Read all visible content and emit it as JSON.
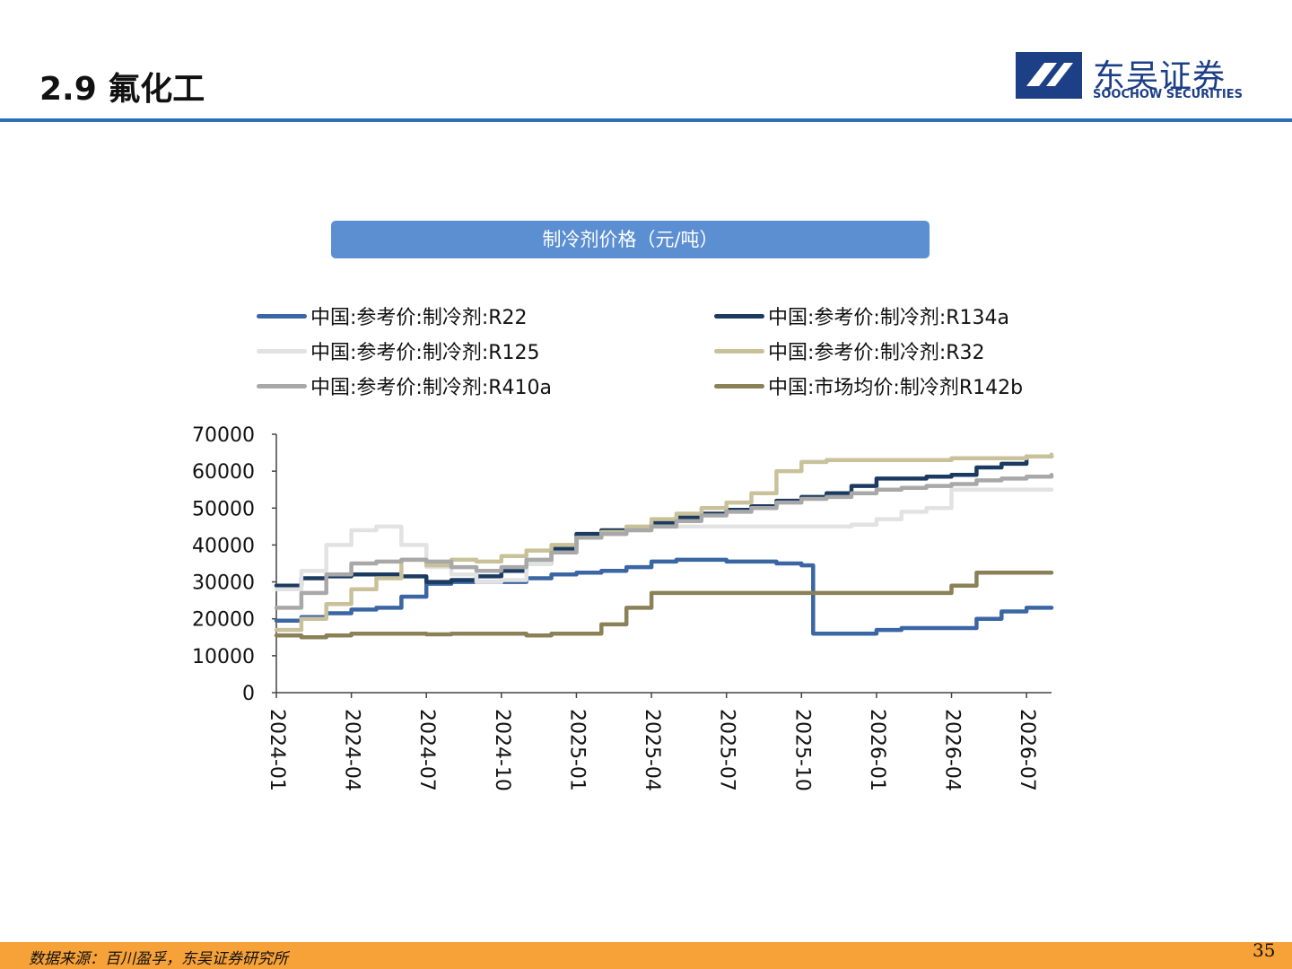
{
  "header": {
    "title": "2.9 氟化工",
    "logo_cn": "东吴证券",
    "logo_en": "SOOCHOW SECURITIES"
  },
  "chart_title": "制冷剂价格（元/吨）",
  "footer": {
    "source": "数据来源：百川盈孚，东吴证券研究所",
    "page": "35"
  },
  "colors": {
    "accent_blue": "#2e6db4",
    "title_bar": "#5b8fd2",
    "footer": "#f7a139",
    "brand": "#1c3f86"
  },
  "chart_data": {
    "type": "line",
    "x_ticks": [
      "2024-01",
      "2024-04",
      "2024-07",
      "2024-10",
      "2025-01",
      "2025-04",
      "2025-07",
      "2025-10",
      "2026-01",
      "2026-04",
      "2026-07"
    ],
    "x_range": [
      "2024-01",
      "2026-08"
    ],
    "ylim": [
      0,
      70000
    ],
    "y_ticks": [
      "0",
      "10000",
      "20000",
      "30000",
      "40000",
      "50000",
      "60000",
      "70000"
    ],
    "grid": false,
    "legend_position": "top",
    "series": [
      {
        "name": "中国:参考价:制冷剂:R22",
        "color": "#3a66a3",
        "points": [
          [
            "2024-01",
            19500
          ],
          [
            "2024-02",
            20500
          ],
          [
            "2024-03",
            21500
          ],
          [
            "2024-04",
            22500
          ],
          [
            "2024-05",
            23000
          ],
          [
            "2024-06",
            26000
          ],
          [
            "2024-07",
            29500
          ],
          [
            "2024-08",
            30000
          ],
          [
            "2024-09",
            30000
          ],
          [
            "2024-10",
            30000
          ],
          [
            "2024-11",
            31000
          ],
          [
            "2024-12",
            32000
          ],
          [
            "2025-01",
            32500
          ],
          [
            "2025-02",
            33000
          ],
          [
            "2025-03",
            34000
          ],
          [
            "2025-04",
            35500
          ],
          [
            "2025-05",
            36000
          ],
          [
            "2025-06",
            36000
          ],
          [
            "2025-07",
            35500
          ],
          [
            "2025-08",
            35500
          ],
          [
            "2025-09",
            35000
          ],
          [
            "2025-10",
            34500
          ],
          [
            "2025-10-15",
            16000
          ],
          [
            "2025-11",
            16000
          ],
          [
            "2025-12",
            16000
          ],
          [
            "2026-01",
            17000
          ],
          [
            "2026-02",
            17500
          ],
          [
            "2026-03",
            17500
          ],
          [
            "2026-04",
            17500
          ],
          [
            "2026-05",
            20000
          ],
          [
            "2026-06",
            22000
          ],
          [
            "2026-07",
            23000
          ],
          [
            "2026-08",
            23000
          ]
        ]
      },
      {
        "name": "中国:参考价:制冷剂:R134a",
        "color": "#1b3a60",
        "points": [
          [
            "2024-01",
            29000
          ],
          [
            "2024-02",
            31000
          ],
          [
            "2024-03",
            31500
          ],
          [
            "2024-04",
            32000
          ],
          [
            "2024-05",
            32000
          ],
          [
            "2024-06",
            31500
          ],
          [
            "2024-07",
            30000
          ],
          [
            "2024-08",
            30500
          ],
          [
            "2024-09",
            31500
          ],
          [
            "2024-10",
            33000
          ],
          [
            "2024-11",
            35000
          ],
          [
            "2024-12",
            39000
          ],
          [
            "2025-01",
            43000
          ],
          [
            "2025-02",
            44000
          ],
          [
            "2025-03",
            44500
          ],
          [
            "2025-04",
            46000
          ],
          [
            "2025-05",
            47500
          ],
          [
            "2025-06",
            48500
          ],
          [
            "2025-07",
            49500
          ],
          [
            "2025-08",
            50500
          ],
          [
            "2025-09",
            52000
          ],
          [
            "2025-10",
            53000
          ],
          [
            "2025-11",
            54000
          ],
          [
            "2025-12",
            56000
          ],
          [
            "2026-01",
            58000
          ],
          [
            "2026-02",
            58000
          ],
          [
            "2026-03",
            58500
          ],
          [
            "2026-04",
            59000
          ],
          [
            "2026-05",
            61000
          ],
          [
            "2026-06",
            62000
          ],
          [
            "2026-07",
            64000
          ],
          [
            "2026-08",
            64000
          ]
        ]
      },
      {
        "name": "中国:参考价:制冷剂:R125",
        "color": "#e2e2e2",
        "points": [
          [
            "2024-01",
            28000
          ],
          [
            "2024-02",
            33000
          ],
          [
            "2024-03",
            40000
          ],
          [
            "2024-04",
            44000
          ],
          [
            "2024-05",
            45000
          ],
          [
            "2024-06",
            40000
          ],
          [
            "2024-07",
            34000
          ],
          [
            "2024-08",
            32000
          ],
          [
            "2024-09",
            30000
          ],
          [
            "2024-10",
            30500
          ],
          [
            "2024-11",
            35000
          ],
          [
            "2024-12",
            38000
          ],
          [
            "2025-01",
            42000
          ],
          [
            "2025-02",
            43000
          ],
          [
            "2025-03",
            44000
          ],
          [
            "2025-04",
            45000
          ],
          [
            "2025-05",
            45000
          ],
          [
            "2025-06",
            45000
          ],
          [
            "2025-07",
            45000
          ],
          [
            "2025-08",
            45000
          ],
          [
            "2025-09",
            45000
          ],
          [
            "2025-10",
            45000
          ],
          [
            "2025-11",
            45000
          ],
          [
            "2025-12",
            45500
          ],
          [
            "2026-01",
            47000
          ],
          [
            "2026-02",
            49000
          ],
          [
            "2026-03",
            50000
          ],
          [
            "2026-04",
            55000
          ],
          [
            "2026-05",
            55000
          ],
          [
            "2026-06",
            55000
          ],
          [
            "2026-07",
            55000
          ],
          [
            "2026-08",
            55000
          ]
        ]
      },
      {
        "name": "中国:参考价:制冷剂:R32",
        "color": "#c9c19a",
        "points": [
          [
            "2024-01",
            17000
          ],
          [
            "2024-02",
            20000
          ],
          [
            "2024-03",
            24000
          ],
          [
            "2024-04",
            28000
          ],
          [
            "2024-05",
            31000
          ],
          [
            "2024-06",
            36000
          ],
          [
            "2024-07",
            34500
          ],
          [
            "2024-08",
            36000
          ],
          [
            "2024-09",
            35500
          ],
          [
            "2024-10",
            37000
          ],
          [
            "2024-11",
            38500
          ],
          [
            "2024-12",
            40000
          ],
          [
            "2025-01",
            42000
          ],
          [
            "2025-02",
            43500
          ],
          [
            "2025-03",
            45000
          ],
          [
            "2025-04",
            47000
          ],
          [
            "2025-05",
            48500
          ],
          [
            "2025-06",
            50000
          ],
          [
            "2025-07",
            51500
          ],
          [
            "2025-08",
            54000
          ],
          [
            "2025-09",
            60000
          ],
          [
            "2025-10",
            62500
          ],
          [
            "2025-11",
            63000
          ],
          [
            "2025-12",
            63000
          ],
          [
            "2026-01",
            63000
          ],
          [
            "2026-02",
            63000
          ],
          [
            "2026-03",
            63000
          ],
          [
            "2026-04",
            63500
          ],
          [
            "2026-05",
            63500
          ],
          [
            "2026-06",
            63500
          ],
          [
            "2026-07",
            64000
          ],
          [
            "2026-08",
            64500
          ]
        ]
      },
      {
        "name": "中国:参考价:制冷剂:R410a",
        "color": "#a8a8a8",
        "points": [
          [
            "2024-01",
            23000
          ],
          [
            "2024-02",
            27000
          ],
          [
            "2024-03",
            32000
          ],
          [
            "2024-04",
            35000
          ],
          [
            "2024-05",
            35500
          ],
          [
            "2024-06",
            36000
          ],
          [
            "2024-07",
            35500
          ],
          [
            "2024-08",
            34000
          ],
          [
            "2024-09",
            33000
          ],
          [
            "2024-10",
            34000
          ],
          [
            "2024-11",
            36000
          ],
          [
            "2024-12",
            38000
          ],
          [
            "2025-01",
            42000
          ],
          [
            "2025-02",
            43000
          ],
          [
            "2025-03",
            44000
          ],
          [
            "2025-04",
            45000
          ],
          [
            "2025-05",
            46500
          ],
          [
            "2025-06",
            48000
          ],
          [
            "2025-07",
            49000
          ],
          [
            "2025-08",
            50000
          ],
          [
            "2025-09",
            51500
          ],
          [
            "2025-10",
            52500
          ],
          [
            "2025-11",
            53000
          ],
          [
            "2025-12",
            54000
          ],
          [
            "2026-01",
            55000
          ],
          [
            "2026-02",
            55500
          ],
          [
            "2026-03",
            56000
          ],
          [
            "2026-04",
            56500
          ],
          [
            "2026-05",
            57500
          ],
          [
            "2026-06",
            58000
          ],
          [
            "2026-07",
            58500
          ],
          [
            "2026-08",
            59000
          ]
        ]
      },
      {
        "name": "中国:市场均价:制冷剂R142b",
        "color": "#8a8157",
        "points": [
          [
            "2024-01",
            15500
          ],
          [
            "2024-02",
            15000
          ],
          [
            "2024-03",
            15500
          ],
          [
            "2024-04",
            16000
          ],
          [
            "2024-05",
            16000
          ],
          [
            "2024-06",
            16000
          ],
          [
            "2024-07",
            15800
          ],
          [
            "2024-08",
            16000
          ],
          [
            "2024-09",
            16000
          ],
          [
            "2024-10",
            16000
          ],
          [
            "2024-11",
            15500
          ],
          [
            "2024-12",
            16000
          ],
          [
            "2025-01",
            16000
          ],
          [
            "2025-02",
            18500
          ],
          [
            "2025-03",
            23000
          ],
          [
            "2025-04",
            27000
          ],
          [
            "2025-05",
            27000
          ],
          [
            "2025-06",
            27000
          ],
          [
            "2025-07",
            27000
          ],
          [
            "2025-08",
            27000
          ],
          [
            "2025-09",
            27000
          ],
          [
            "2025-10",
            27000
          ],
          [
            "2025-11",
            27000
          ],
          [
            "2025-12",
            27000
          ],
          [
            "2026-01",
            27000
          ],
          [
            "2026-02",
            27000
          ],
          [
            "2026-03",
            27000
          ],
          [
            "2026-04",
            29000
          ],
          [
            "2026-05",
            32500
          ],
          [
            "2026-06",
            32500
          ],
          [
            "2026-07",
            32500
          ],
          [
            "2026-08",
            32500
          ]
        ]
      }
    ]
  }
}
